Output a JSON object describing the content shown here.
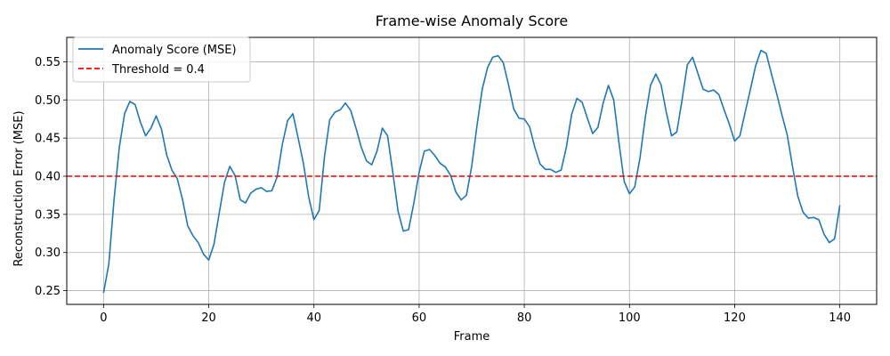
{
  "chart_data": {
    "type": "line",
    "title": "Frame-wise Anomaly Score",
    "xlabel": "Frame",
    "ylabel": "Reconstruction Error (MSE)",
    "xlim": [
      -7,
      147
    ],
    "ylim": [
      0.232,
      0.582
    ],
    "xticks": [
      0,
      20,
      40,
      60,
      80,
      100,
      120,
      140
    ],
    "yticks": [
      0.25,
      0.3,
      0.35,
      0.4,
      0.45,
      0.5,
      0.55
    ],
    "grid": true,
    "legend_position": "top-left",
    "series": [
      {
        "name": "Anomaly Score (MSE)",
        "color": "#1f77b4",
        "style": "solid",
        "x": [
          0,
          1,
          2,
          3,
          4,
          5,
          6,
          7,
          8,
          9,
          10,
          11,
          12,
          13,
          14,
          15,
          16,
          17,
          18,
          19,
          20,
          21,
          22,
          23,
          24,
          25,
          26,
          27,
          28,
          29,
          30,
          31,
          32,
          33,
          34,
          35,
          36,
          37,
          38,
          39,
          40,
          41,
          42,
          43,
          44,
          45,
          46,
          47,
          48,
          49,
          50,
          51,
          52,
          53,
          54,
          55,
          56,
          57,
          58,
          59,
          60,
          61,
          62,
          63,
          64,
          65,
          66,
          67,
          68,
          69,
          70,
          71,
          72,
          73,
          74,
          75,
          76,
          77,
          78,
          79,
          80,
          81,
          82,
          83,
          84,
          85,
          86,
          87,
          88,
          89,
          90,
          91,
          92,
          93,
          94,
          95,
          96,
          97,
          98,
          99,
          100,
          101,
          102,
          103,
          104,
          105,
          106,
          107,
          108,
          109,
          110,
          111,
          112,
          113,
          114,
          115,
          116,
          117,
          118,
          119,
          120,
          121,
          122,
          123,
          124,
          125,
          126,
          127,
          128,
          129,
          130,
          131,
          132,
          133,
          134,
          135,
          136,
          137,
          138,
          139,
          140
        ],
        "y": [
          0.247,
          0.285,
          0.37,
          0.438,
          0.482,
          0.498,
          0.494,
          0.471,
          0.453,
          0.463,
          0.479,
          0.462,
          0.428,
          0.408,
          0.397,
          0.37,
          0.335,
          0.322,
          0.313,
          0.298,
          0.29,
          0.311,
          0.352,
          0.392,
          0.413,
          0.401,
          0.369,
          0.365,
          0.378,
          0.383,
          0.385,
          0.38,
          0.381,
          0.399,
          0.442,
          0.473,
          0.482,
          0.45,
          0.417,
          0.373,
          0.343,
          0.355,
          0.425,
          0.474,
          0.484,
          0.487,
          0.496,
          0.486,
          0.463,
          0.438,
          0.42,
          0.415,
          0.433,
          0.463,
          0.453,
          0.405,
          0.354,
          0.328,
          0.33,
          0.365,
          0.405,
          0.433,
          0.435,
          0.427,
          0.417,
          0.412,
          0.401,
          0.379,
          0.369,
          0.375,
          0.413,
          0.466,
          0.514,
          0.542,
          0.556,
          0.558,
          0.549,
          0.52,
          0.488,
          0.476,
          0.475,
          0.465,
          0.438,
          0.416,
          0.409,
          0.409,
          0.405,
          0.408,
          0.438,
          0.481,
          0.502,
          0.497,
          0.476,
          0.456,
          0.464,
          0.496,
          0.519,
          0.5,
          0.444,
          0.393,
          0.377,
          0.386,
          0.424,
          0.477,
          0.519,
          0.534,
          0.52,
          0.484,
          0.453,
          0.458,
          0.5,
          0.546,
          0.556,
          0.535,
          0.514,
          0.511,
          0.513,
          0.507,
          0.487,
          0.468,
          0.446,
          0.453,
          0.484,
          0.514,
          0.545,
          0.565,
          0.561,
          0.534,
          0.508,
          0.48,
          0.454,
          0.413,
          0.374,
          0.353,
          0.345,
          0.346,
          0.343,
          0.324,
          0.313,
          0.318,
          0.362
        ]
      },
      {
        "name": "Threshold = 0.4",
        "color": "#ff0000",
        "style": "dashed",
        "constant_y": 0.4
      }
    ]
  }
}
